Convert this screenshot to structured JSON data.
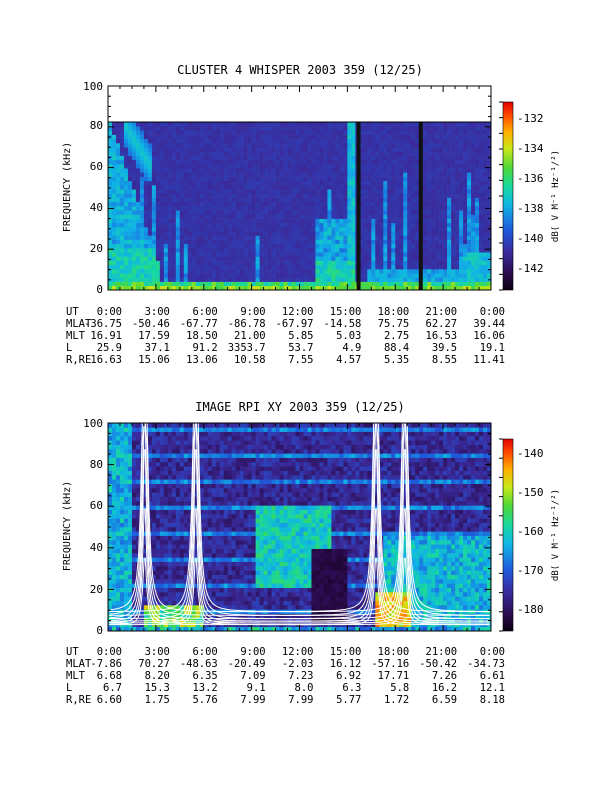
{
  "colors": {
    "background": "#ffffff",
    "axis": "#000000",
    "overlay_curves": "#ffffff",
    "gap_bars": "#111111"
  },
  "colormap": "rainbow (dark purple - blue - cyan - green - yellow - orange - red)",
  "chart_data": [
    {
      "type": "heatmap",
      "title": "CLUSTER 4 WHISPER 2003 359 (12/25)",
      "ylabel": "FREQUENCY (kHz)",
      "ylim": [
        0,
        100
      ],
      "y_ticks": [
        "0",
        "20",
        "40",
        "60",
        "80",
        "100"
      ],
      "x_tick_labels": [
        "0:00",
        "3:00",
        "6:00",
        "9:00",
        "12:00",
        "15:00",
        "18:00",
        "21:00",
        "0:00"
      ],
      "data_ceiling_khz": 80,
      "data_gaps_ut_hours": [
        15.7,
        19.6
      ],
      "colorbar": {
        "title": "dB( V M⁻¹ Hz⁻¹/²)",
        "range": [
          -143.5,
          -131
        ],
        "ticks": [
          "-132",
          "-134",
          "-136",
          "-138",
          "-140",
          "-142"
        ]
      },
      "ephemeris": {
        "UT": [
          "0:00",
          "3:00",
          "6:00",
          "9:00",
          "12:00",
          "15:00",
          "18:00",
          "21:00",
          "0:00"
        ],
        "MLAT": [
          "-36.75",
          "-50.46",
          "-67.77",
          "-86.78",
          "-67.97",
          "-14.58",
          "75.75",
          "62.27",
          "39.44"
        ],
        "MLT": [
          "16.91",
          "17.59",
          "18.50",
          "21.00",
          "5.85",
          "5.03",
          "2.75",
          "16.53",
          "16.06"
        ],
        "L": [
          "25.9",
          "37.1",
          "91.2",
          "3353.7",
          "53.7",
          "4.9",
          "88.4",
          "39.5",
          "19.1"
        ],
        "R,RE": [
          "16.63",
          "15.06",
          "13.06",
          "10.58",
          "7.55",
          "4.57",
          "5.35",
          "8.55",
          "11.41"
        ]
      }
    },
    {
      "type": "heatmap",
      "title": "IMAGE RPI XY 2003 359 (12/25)",
      "ylabel": "FREQUENCY (kHz)",
      "ylim": [
        0,
        100
      ],
      "y_ticks": [
        "0",
        "20",
        "40",
        "60",
        "80",
        "100"
      ],
      "x_tick_labels": [
        "0:00",
        "3:00",
        "6:00",
        "9:00",
        "12:00",
        "15:00",
        "18:00",
        "21:00",
        "0:00"
      ],
      "overlay_curve_centers_ut_hours": [
        2.3,
        5.5,
        16.8,
        18.6
      ],
      "colorbar": {
        "title": "dB( V M⁻¹ Hz⁻¹/²)",
        "range": [
          -185,
          -135
        ],
        "ticks": [
          "-140",
          "-150",
          "-160",
          "-170",
          "-180"
        ]
      },
      "ephemeris": {
        "UT": [
          "0:00",
          "3:00",
          "6:00",
          "9:00",
          "12:00",
          "15:00",
          "18:00",
          "21:00",
          "0:00"
        ],
        "MLAT": [
          "-7.86",
          "70.27",
          "-48.63",
          "-20.49",
          "-2.03",
          "16.12",
          "-57.16",
          "-50.42",
          "-34.73"
        ],
        "MLT": [
          "6.68",
          "8.20",
          "6.35",
          "7.09",
          "7.23",
          "6.92",
          "17.71",
          "7.26",
          "6.61"
        ],
        "L": [
          "6.7",
          "15.3",
          "13.2",
          "9.1",
          "8.0",
          "6.3",
          "5.8",
          "16.2",
          "12.1"
        ],
        "R,RE": [
          "6.60",
          "1.75",
          "5.76",
          "7.99",
          "7.99",
          "5.77",
          "1.72",
          "6.59",
          "8.18"
        ]
      }
    }
  ]
}
